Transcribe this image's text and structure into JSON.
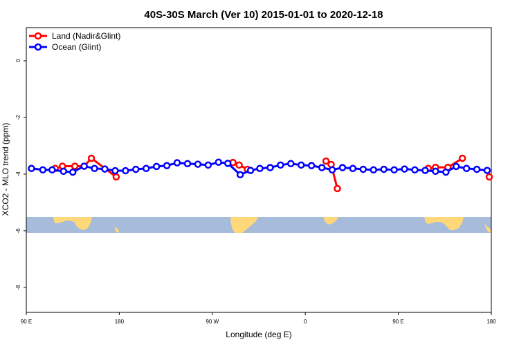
{
  "chart_data": {
    "type": "line",
    "title": "40S-30S March (Ver 10)   2015-01-01 to 2020-12-18",
    "xlabel": "Longitude (deg E)",
    "ylabel": "XCO2 - MLO trend (ppm)",
    "xlim": [
      90,
      540
    ],
    "ylim": [
      -8.88,
      1.17
    ],
    "x_ticks": [
      {
        "v": 90,
        "label": "90 E"
      },
      {
        "v": 180,
        "label": "180"
      },
      {
        "v": 270,
        "label": "90 W"
      },
      {
        "v": 360,
        "label": "0"
      },
      {
        "v": 450,
        "label": "90 E"
      },
      {
        "v": 540,
        "label": "180"
      }
    ],
    "y_ticks": [
      {
        "v": 0,
        "label": "0"
      },
      {
        "v": -2,
        "label": "-2"
      },
      {
        "v": -4,
        "label": "-4"
      },
      {
        "v": -6,
        "label": "-6"
      },
      {
        "v": -8,
        "label": "-8"
      }
    ],
    "legend_position": "top-left",
    "series": [
      {
        "name": "Land (Nadir&Glint)",
        "color": "#ff0000",
        "x": [
          118,
          125,
          137,
          146,
          153,
          177,
          null,
          290,
          296,
          304,
          null,
          380,
          385,
          391,
          null,
          479,
          486,
          498,
          512,
          null,
          538
        ],
        "y": [
          -3.8,
          -3.72,
          -3.72,
          -3.72,
          -3.44,
          -4.1,
          null,
          -3.59,
          -3.68,
          -3.83,
          null,
          -3.54,
          -3.66,
          -4.51,
          null,
          -3.8,
          -3.76,
          -3.76,
          -3.44,
          null,
          -4.1
        ]
      },
      {
        "name": "Ocean (Glint)",
        "color": "#0000ff",
        "x": [
          95,
          106,
          115,
          126,
          135,
          146,
          156,
          166,
          176,
          186,
          196,
          206,
          216,
          226,
          236,
          246,
          256,
          266,
          276,
          285,
          297,
          307,
          316,
          326,
          336,
          346,
          356,
          366,
          376,
          386,
          396,
          406,
          416,
          426,
          436,
          446,
          456,
          466,
          476,
          486,
          496,
          506,
          516,
          526,
          536
        ],
        "y": [
          -3.8,
          -3.85,
          -3.85,
          -3.9,
          -3.93,
          -3.72,
          -3.8,
          -3.82,
          -3.88,
          -3.88,
          -3.83,
          -3.8,
          -3.73,
          -3.7,
          -3.6,
          -3.63,
          -3.65,
          -3.68,
          -3.58,
          -3.62,
          -4.02,
          -3.87,
          -3.8,
          -3.77,
          -3.68,
          -3.63,
          -3.68,
          -3.7,
          -3.77,
          -3.85,
          -3.77,
          -3.8,
          -3.83,
          -3.85,
          -3.83,
          -3.85,
          -3.82,
          -3.85,
          -3.87,
          -3.9,
          -3.93,
          -3.73,
          -3.8,
          -3.83,
          -3.87
        ]
      }
    ],
    "map_band": {
      "ocean_color": "#a7bcdb",
      "land_color": "#ffd979"
    }
  }
}
